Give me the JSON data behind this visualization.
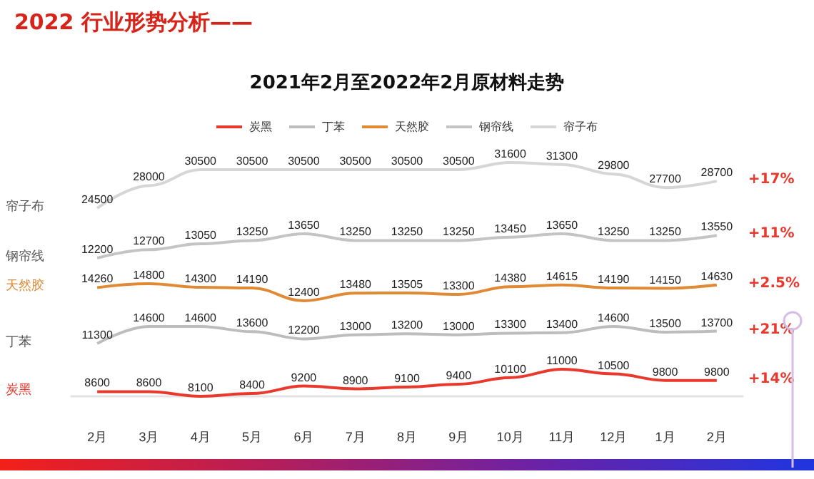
{
  "chart_data": [
    {
      "type": "other",
      "title": "2022 行业形势分析——",
      "subtitle": "2021年2月至2022年2月原材料走势",
      "categories": [
        "炭黑",
        "丁苯",
        "天然胶",
        "钢帘线",
        "帘子布"
      ],
      "colors": [
        "#e8392c",
        "#bdbdbd",
        "#e08a35",
        "#c4c4c4",
        "#d6d6d6"
      ]
    },
    {
      "type": "line",
      "categories": [
        null,
        null,
        null,
        null,
        null,
        null,
        null,
        null,
        null,
        null,
        null,
        null,
        null
      ],
      "series": [
        {
          "name": "帘子布",
          "color": "#d6d6d6",
          "values": [
            24500,
            28000,
            30500,
            30500,
            30500,
            30500,
            30500,
            30500,
            31600,
            31300,
            29800,
            27700,
            28700
          ]
        }
      ],
      "annotations": [
        "+17%"
      ],
      "data_labels": true,
      "marker": "none",
      "tick_labels": false
    },
    {
      "type": "line",
      "categories": [
        null,
        null,
        null,
        null,
        null,
        null,
        null,
        null,
        null,
        null,
        null,
        null,
        null
      ],
      "series": [
        {
          "name": "钢帘线",
          "color": "#c4c4c4",
          "values": [
            12200,
            12700,
            13050,
            13250,
            13650,
            13250,
            13250,
            13250,
            13450,
            13650,
            13250,
            13250,
            13550
          ]
        }
      ],
      "annotations": [
        "+11%"
      ],
      "data_labels": true,
      "marker": "none",
      "tick_labels": false
    },
    {
      "type": "line",
      "categories": [
        null,
        null,
        null,
        null,
        null,
        null,
        null,
        null,
        null,
        null,
        null,
        null,
        null
      ],
      "series": [
        {
          "name": "天然胶",
          "color": "#e08a35",
          "values": [
            14260,
            14800,
            14300,
            14190,
            12400,
            13480,
            13505,
            13300,
            14380,
            14615,
            14190,
            14150,
            14630
          ]
        }
      ],
      "annotations": [
        "+2.5%"
      ],
      "data_labels": true,
      "marker": "none",
      "tick_labels": false
    },
    {
      "type": "line",
      "categories": [
        null,
        null,
        null,
        null,
        null,
        null,
        null,
        null,
        null,
        null,
        null,
        null,
        null
      ],
      "series": [
        {
          "name": "丁苯",
          "color": "#bdbdbd",
          "values": [
            11300,
            14600,
            14600,
            13600,
            12200,
            13000,
            13200,
            13000,
            13300,
            13400,
            14600,
            13500,
            13700
          ]
        }
      ],
      "annotations": [
        "+21%"
      ],
      "data_labels": true,
      "marker": "none",
      "tick_labels": false
    },
    {
      "type": "line",
      "categories": [
        "2月",
        "3月",
        "4月",
        "5月",
        "6月",
        "7月",
        "8月",
        "9月",
        "10月",
        "11月",
        "12月",
        "1月",
        "2月"
      ],
      "series": [
        {
          "name": "炭黑",
          "color": "#e8392c",
          "values": [
            8600,
            8600,
            8100,
            8400,
            9200,
            8900,
            9100,
            9400,
            10100,
            11000,
            10500,
            9800,
            9800
          ]
        }
      ],
      "annotations": [
        "+14%"
      ],
      "data_labels": true,
      "marker": "none",
      "tick_labels": "x"
    }
  ]
}
